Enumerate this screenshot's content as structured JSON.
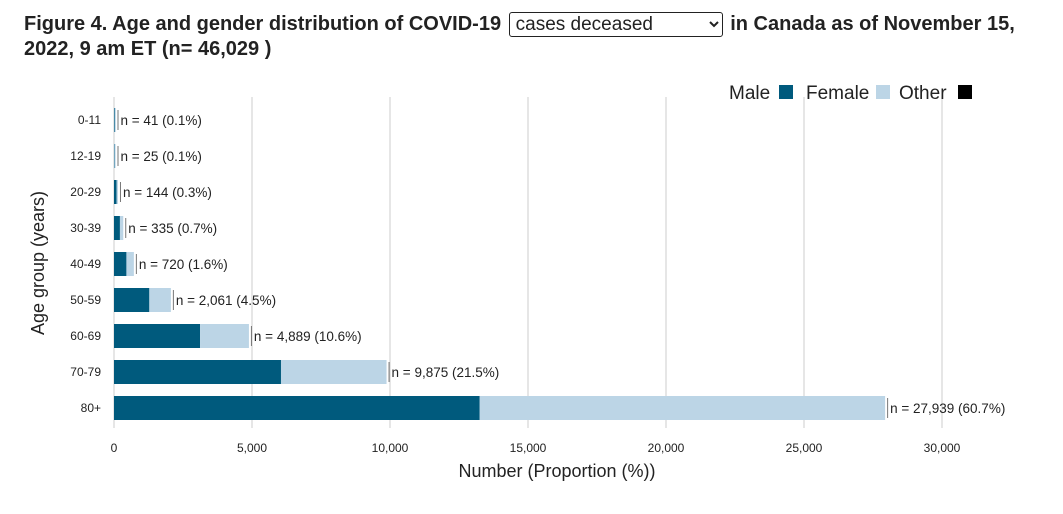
{
  "title": {
    "prefix": "Figure 4. Age and gender distribution of COVID-19",
    "selected": "cases deceased",
    "suffix": "in Canada as of November 15, 2022, 9 am ET (n= 46,029 )"
  },
  "colors": {
    "male": "#005a7d",
    "female": "#bcd5e6",
    "other": "#000000"
  },
  "chart_data": {
    "type": "bar",
    "orientation": "horizontal",
    "stacked": true,
    "categories": [
      "0-11",
      "12-19",
      "20-29",
      "30-39",
      "40-49",
      "50-59",
      "60-69",
      "70-79",
      "80+"
    ],
    "series": [
      {
        "name": "Male",
        "values": [
          22,
          14,
          95,
          215,
          450,
          1280,
          3120,
          6050,
          13250
        ]
      },
      {
        "name": "Female",
        "values": [
          19,
          11,
          49,
          120,
          270,
          781,
          1769,
          3825,
          14689
        ]
      },
      {
        "name": "Other",
        "values": [
          0,
          0,
          0,
          0,
          0,
          0,
          0,
          0,
          0
        ]
      }
    ],
    "bar_labels": [
      "n = 41 (0.1%)",
      "n = 25 (0.1%)",
      "n = 144 (0.3%)",
      "n = 335 (0.7%)",
      "n = 720 (1.6%)",
      "n = 2,061 (4.5%)",
      "n = 4,889 (10.6%)",
      "n = 9,875 (21.5%)",
      "n = 27,939 (60.7%)"
    ],
    "totals": [
      41,
      25,
      144,
      335,
      720,
      2061,
      4889,
      9875,
      27939
    ],
    "xticks": [
      0,
      5000,
      10000,
      15000,
      20000,
      25000,
      30000
    ],
    "xtick_labels": [
      "0",
      "5,000",
      "10,000",
      "15,000",
      "20,000",
      "25,000",
      "30,000"
    ],
    "xlim": [
      0,
      30000
    ],
    "xlabel": "Number (Proportion (%))",
    "ylabel": "Age group (years)",
    "grid": true,
    "legend_position": "top-right"
  }
}
